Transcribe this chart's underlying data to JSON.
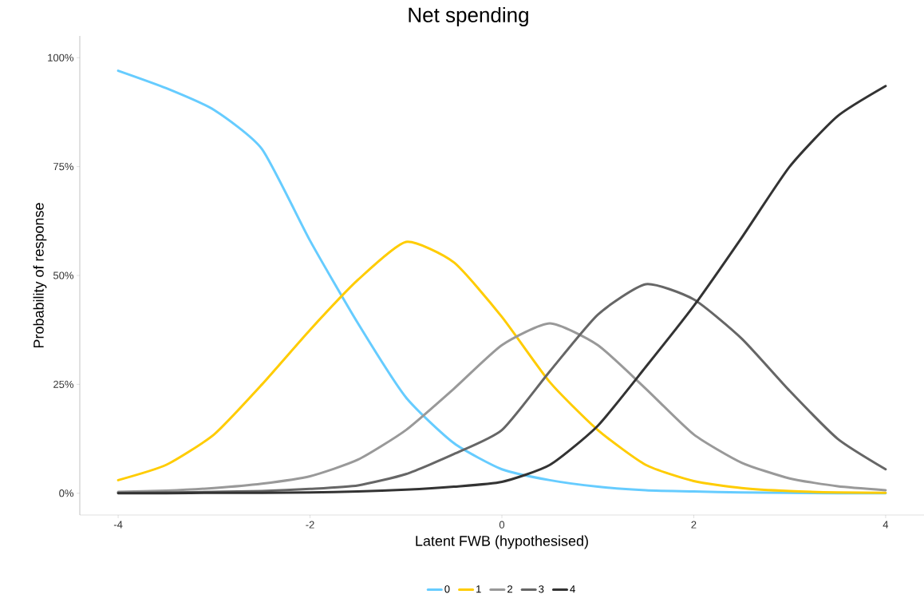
{
  "chart_data": {
    "type": "line",
    "title": "Net spending",
    "xlabel": "Latent FWB (hypothesised)",
    "ylabel": "Probability of response",
    "x": [
      -4,
      -3.5,
      -3,
      -2.5,
      -2,
      -1.5,
      -1,
      -0.5,
      0,
      0.5,
      1,
      1.5,
      2,
      2.5,
      3,
      3.5,
      4
    ],
    "series": [
      {
        "name": "0",
        "color": "#66ccff",
        "values": [
          97,
          93,
          88,
          79,
          58,
          39,
          22,
          11.5,
          5.5,
          3,
          1.5,
          0.7,
          0.4,
          0.2,
          0.1,
          0,
          0
        ]
      },
      {
        "name": "1",
        "color": "#ffcc00",
        "values": [
          3,
          6.5,
          13.5,
          25,
          37.5,
          49,
          57.7,
          53,
          40.5,
          25.5,
          14.5,
          6.5,
          2.8,
          1.2,
          0.5,
          0.2,
          0.1
        ]
      },
      {
        "name": "2",
        "color": "#999999",
        "values": [
          0.3,
          0.6,
          1.2,
          2.2,
          3.9,
          7.7,
          14.5,
          24,
          34,
          39,
          34,
          24,
          13.5,
          7,
          3.4,
          1.6,
          0.7
        ]
      },
      {
        "name": "3",
        "color": "#666666",
        "values": [
          0.1,
          0.2,
          0.3,
          0.5,
          1,
          1.8,
          4.4,
          9,
          14.5,
          28,
          41,
          48,
          44.5,
          35.5,
          23.5,
          12.5,
          5.5
        ]
      },
      {
        "name": "4",
        "color": "#333333",
        "values": [
          0,
          0,
          0.1,
          0.1,
          0.2,
          0.4,
          0.8,
          1.5,
          2.6,
          6.5,
          15.5,
          29,
          43,
          58.7,
          75,
          86.6,
          93.5
        ]
      }
    ],
    "xlim": [
      -4.4,
      4.4
    ],
    "ylim": [
      -5,
      105
    ],
    "xticks": [
      -4,
      -2,
      0,
      2,
      4
    ],
    "yticks": [
      {
        "value": 0,
        "label": "0%"
      },
      {
        "value": 25,
        "label": "25%"
      },
      {
        "value": 50,
        "label": "50%"
      },
      {
        "value": 75,
        "label": "75%"
      },
      {
        "value": 100,
        "label": "100%"
      }
    ],
    "grid": false,
    "legend": "bottom",
    "marker": "none",
    "line_style": "solid"
  }
}
